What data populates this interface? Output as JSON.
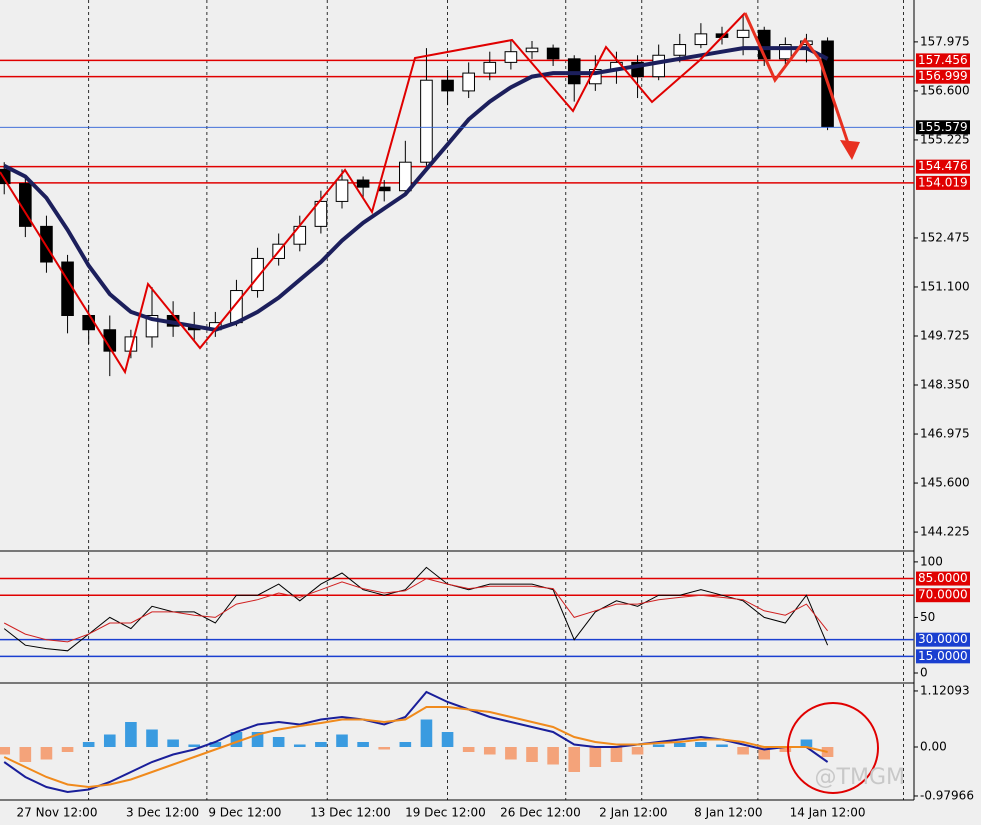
{
  "watermark": "@TMGM",
  "chart_data": [
    {
      "type": "candlestick",
      "open": [
        154.4,
        154.0,
        152.8,
        151.8,
        150.3,
        149.9,
        149.3,
        149.7,
        150.3,
        150.0,
        149.9,
        150.1,
        151.0,
        151.9,
        152.3,
        152.8,
        153.5,
        154.1,
        153.9,
        153.8,
        154.6,
        156.9,
        156.6,
        157.1,
        157.4,
        157.7,
        157.8,
        157.5,
        156.8,
        157.2,
        157.4,
        157.0,
        157.6,
        157.9,
        158.2,
        158.1,
        158.3,
        157.5,
        157.9,
        158.0
      ],
      "high": [
        154.6,
        154.2,
        153.1,
        152.0,
        150.6,
        150.3,
        149.9,
        151.1,
        150.7,
        150.4,
        150.4,
        151.3,
        152.2,
        152.6,
        153.1,
        153.8,
        154.4,
        154.2,
        154.1,
        155.2,
        157.8,
        157.2,
        157.4,
        157.7,
        158.0,
        158.0,
        157.9,
        157.6,
        157.6,
        157.7,
        157.6,
        157.9,
        158.2,
        158.5,
        158.4,
        158.7,
        158.4,
        158.1,
        158.2,
        158.1
      ],
      "low": [
        153.7,
        152.5,
        151.5,
        149.8,
        149.5,
        148.6,
        149.1,
        149.4,
        149.7,
        149.6,
        149.7,
        150.0,
        150.8,
        151.7,
        152.1,
        152.6,
        153.3,
        153.6,
        153.5,
        153.7,
        154.5,
        156.2,
        156.4,
        156.9,
        157.2,
        157.5,
        157.3,
        156.3,
        156.6,
        156.8,
        156.4,
        156.9,
        157.4,
        157.8,
        157.9,
        157.6,
        157.3,
        157.3,
        157.4,
        155.5
      ],
      "close": [
        154.0,
        152.8,
        151.8,
        150.3,
        149.9,
        149.3,
        149.7,
        150.3,
        150.0,
        149.9,
        150.1,
        151.0,
        151.9,
        152.3,
        152.8,
        153.5,
        154.1,
        153.9,
        153.8,
        154.6,
        156.9,
        156.6,
        157.1,
        157.4,
        157.7,
        157.8,
        157.5,
        156.8,
        157.2,
        157.4,
        157.0,
        157.6,
        157.9,
        158.2,
        158.1,
        158.3,
        157.5,
        157.9,
        158.0,
        155.6
      ],
      "up_color": "#ffffff",
      "down_color": "#000000",
      "ma": {
        "color": "#1c1f5c",
        "values": [
          154.5,
          154.2,
          153.6,
          152.7,
          151.7,
          150.9,
          150.4,
          150.2,
          150.1,
          150.0,
          149.9,
          150.1,
          150.4,
          150.8,
          151.3,
          151.8,
          152.4,
          152.9,
          153.3,
          153.7,
          154.4,
          155.1,
          155.8,
          156.3,
          156.7,
          157.0,
          157.1,
          157.1,
          157.1,
          157.2,
          157.3,
          157.4,
          157.5,
          157.6,
          157.7,
          157.8,
          157.8,
          157.8,
          157.8,
          157.5
        ]
      },
      "xlim": [
        -0.2,
        43
      ],
      "xticks": [
        {
          "value": 2.5,
          "label": "27 Nov 12:00"
        },
        {
          "value": 7.5,
          "label": "3 Dec 12:00"
        },
        {
          "value": 11.4,
          "label": "9 Dec 12:00"
        },
        {
          "value": 16.4,
          "label": "13 Dec 12:00"
        },
        {
          "value": 20.9,
          "label": "19 Dec 12:00"
        },
        {
          "value": 25.4,
          "label": "26 Dec 12:00"
        },
        {
          "value": 29.8,
          "label": "2 Jan 12:00"
        },
        {
          "value": 34.3,
          "label": "8 Jan 12:00"
        },
        {
          "value": 39.0,
          "label": "14 Jan 12:00"
        }
      ],
      "xgrid": [
        4,
        9.6,
        15.3,
        21,
        26.6,
        30.2,
        35.7,
        42.6
      ],
      "ylim": [
        143.75,
        159.15
      ],
      "yticks": [
        {
          "value": 157.975,
          "label": "157.975"
        },
        {
          "value": 156.6,
          "label": "156.600"
        },
        {
          "value": 155.225,
          "label": "155.225"
        },
        {
          "value": 152.475,
          "label": "152.475"
        },
        {
          "value": 151.1,
          "label": "151.100"
        },
        {
          "value": 149.725,
          "label": "149.725"
        },
        {
          "value": 148.35,
          "label": "148.350"
        },
        {
          "value": 146.975,
          "label": "146.975"
        },
        {
          "value": 145.6,
          "label": "145.600"
        },
        {
          "value": 144.225,
          "label": "144.225"
        }
      ],
      "levels": [
        {
          "value": 157.456,
          "color": "#e00000"
        },
        {
          "value": 156.999,
          "color": "#e00000"
        },
        {
          "value": 154.476,
          "color": "#e00000"
        },
        {
          "value": 154.019,
          "color": "#e00000"
        }
      ],
      "last": {
        "value": 155.579,
        "color": "#2a5fd6"
      }
    },
    {
      "type": "line",
      "series": [
        {
          "color": "#000000",
          "values": [
            40,
            25,
            22,
            20,
            35,
            50,
            40,
            60,
            55,
            55,
            45,
            70,
            70,
            80,
            65,
            80,
            90,
            75,
            70,
            75,
            95,
            80,
            75,
            80,
            80,
            80,
            75,
            30,
            55,
            65,
            60,
            70,
            70,
            75,
            70,
            65,
            50,
            45,
            70,
            25
          ]
        },
        {
          "color": "#d02020",
          "values": [
            45,
            35,
            30,
            28,
            35,
            45,
            45,
            55,
            55,
            52,
            50,
            62,
            66,
            72,
            68,
            75,
            82,
            76,
            72,
            74,
            85,
            80,
            76,
            78,
            78,
            78,
            76,
            50,
            56,
            62,
            62,
            66,
            68,
            70,
            68,
            66,
            56,
            52,
            62,
            38
          ]
        }
      ],
      "ylim": [
        -6.3,
        108
      ],
      "yticks": [
        100,
        50,
        0
      ],
      "levels": [
        {
          "value": 85,
          "label": "85.0000",
          "color": "#e00000"
        },
        {
          "value": 70,
          "label": "70.0000",
          "color": "#e00000"
        },
        {
          "value": 30,
          "label": "30.0000",
          "color": "#1a3fd0"
        },
        {
          "value": 15,
          "label": "15.0000",
          "color": "#1a3fd0"
        }
      ]
    },
    {
      "type": "macd",
      "histogram": {
        "positive_color": "#3a9be0",
        "negative_color": "#f4a37a",
        "values": [
          -0.15,
          -0.3,
          -0.25,
          -0.1,
          0.1,
          0.25,
          0.5,
          0.35,
          0.15,
          0.05,
          0.1,
          0.3,
          0.3,
          0.2,
          0.05,
          0.1,
          0.25,
          0.1,
          -0.05,
          0.1,
          0.55,
          0.3,
          -0.1,
          -0.15,
          -0.25,
          -0.3,
          -0.35,
          -0.5,
          -0.4,
          -0.3,
          -0.15,
          0.05,
          0.08,
          0.1,
          0.05,
          -0.15,
          -0.25,
          -0.1,
          0.15,
          -0.2
        ]
      },
      "series": [
        {
          "color": "#1a1f9a",
          "values": [
            -0.3,
            -0.6,
            -0.8,
            -0.9,
            -0.85,
            -0.7,
            -0.5,
            -0.3,
            -0.15,
            -0.05,
            0.1,
            0.3,
            0.45,
            0.5,
            0.45,
            0.55,
            0.6,
            0.55,
            0.45,
            0.6,
            1.1,
            0.9,
            0.75,
            0.6,
            0.5,
            0.4,
            0.3,
            0.05,
            0.0,
            0.0,
            0.05,
            0.1,
            0.15,
            0.2,
            0.15,
            0.05,
            -0.05,
            0.0,
            0.0,
            -0.3
          ]
        },
        {
          "color": "#f08a1c",
          "values": [
            -0.2,
            -0.4,
            -0.6,
            -0.75,
            -0.8,
            -0.75,
            -0.65,
            -0.5,
            -0.35,
            -0.2,
            -0.05,
            0.1,
            0.25,
            0.35,
            0.42,
            0.48,
            0.55,
            0.55,
            0.5,
            0.55,
            0.8,
            0.8,
            0.75,
            0.7,
            0.6,
            0.5,
            0.4,
            0.2,
            0.1,
            0.05,
            0.05,
            0.08,
            0.1,
            0.15,
            0.15,
            0.1,
            0.0,
            0.0,
            0.0,
            -0.1
          ]
        }
      ],
      "ylim": [
        -1.06,
        1.24
      ],
      "yticks": [
        1.12093,
        {
          "value": 0,
          "label": "0.00"
        },
        -0.97966
      ]
    }
  ]
}
